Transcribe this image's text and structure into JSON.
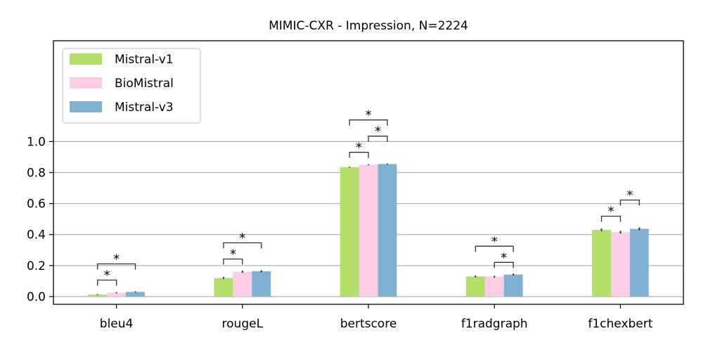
{
  "chart_data": {
    "type": "bar",
    "title": "MIMIC-CXR - Impression, N=2224",
    "xlabel": "",
    "ylabel": "",
    "categories": [
      "bleu4",
      "rougeL",
      "bertscore",
      "f1radgraph",
      "f1chexbert"
    ],
    "series": [
      {
        "name": "Mistral-v1",
        "color": "#b3de69",
        "values": [
          0.013,
          0.12,
          0.835,
          0.13,
          0.43
        ],
        "errors": [
          0.003,
          0.006,
          0.003,
          0.006,
          0.009
        ]
      },
      {
        "name": "BioMistral",
        "color": "#fccde5",
        "values": [
          0.025,
          0.16,
          0.85,
          0.128,
          0.415
        ],
        "errors": [
          0.004,
          0.007,
          0.003,
          0.006,
          0.009
        ]
      },
      {
        "name": "Mistral-v3",
        "color": "#80b1d3",
        "values": [
          0.03,
          0.163,
          0.855,
          0.142,
          0.437
        ],
        "errors": [
          0.004,
          0.007,
          0.003,
          0.006,
          0.009
        ]
      }
    ],
    "ylim": [
      -0.05,
      1.65
    ],
    "yticks": [
      "0.0",
      "0.2",
      "0.4",
      "0.6",
      "0.8",
      "1.0"
    ],
    "ytick_values": [
      0,
      0.2,
      0.4,
      0.6,
      0.8,
      1.0
    ],
    "grid": "horizontal",
    "legend_position": "top-left",
    "significance_marker": "*",
    "significance": [
      {
        "category": 0,
        "from": 0,
        "to": 1,
        "level": 0
      },
      {
        "category": 0,
        "from": 0,
        "to": 2,
        "level": 1
      },
      {
        "category": 1,
        "from": 0,
        "to": 1,
        "level": 0
      },
      {
        "category": 1,
        "from": 0,
        "to": 2,
        "level": 1
      },
      {
        "category": 2,
        "from": 0,
        "to": 1,
        "level": 0
      },
      {
        "category": 2,
        "from": 1,
        "to": 2,
        "level": 1
      },
      {
        "category": 2,
        "from": 0,
        "to": 2,
        "level": 2
      },
      {
        "category": 3,
        "from": 1,
        "to": 2,
        "level": 0
      },
      {
        "category": 3,
        "from": 0,
        "to": 2,
        "level": 1
      },
      {
        "category": 4,
        "from": 0,
        "to": 1,
        "level": 0
      },
      {
        "category": 4,
        "from": 1,
        "to": 2,
        "level": 1
      }
    ]
  }
}
